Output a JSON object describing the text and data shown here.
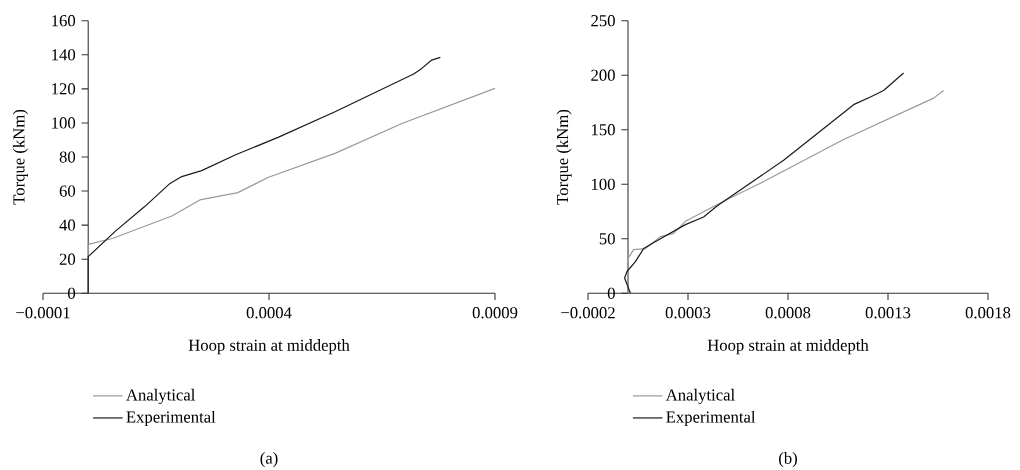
{
  "chart_data": [
    {
      "type": "line",
      "xlabel": "Hoop strain at middepth",
      "ylabel": "Torque (kNm)",
      "annotations": [
        "(a)"
      ],
      "legend": "bottom",
      "line_style": "solid",
      "marker": "none",
      "xlim": [
        -0.0001,
        0.0009
      ],
      "ylim": [
        0,
        160
      ],
      "xticks": [
        {
          "value": -0.0001,
          "label": "−0.0001"
        },
        0.0004,
        0.0009
      ],
      "yticks": [
        0,
        20,
        40,
        60,
        80,
        100,
        120,
        140,
        160
      ],
      "series": [
        {
          "name": "Analytical",
          "color": "#999999",
          "x": [
            0,
            0,
            5.5e-05,
            0.000185,
            0.000247,
            0.000331,
            0.000399,
            0.000546,
            0.000694,
            0.0009
          ],
          "values": [
            0,
            28.7,
            32.3,
            45.4,
            54.8,
            59.1,
            68.1,
            82.1,
            99.7,
            120.3
          ]
        },
        {
          "name": "Experimental",
          "color": "#1a1a1a",
          "x": [
            0,
            0,
            5.9e-05,
            0.000125,
            0.000181,
            0.000207,
            0.000251,
            0.000325,
            0.00042,
            0.000546,
            0.00072,
            0.000738,
            0.00076,
            0.000779
          ],
          "values": [
            0,
            21.5,
            36.2,
            50.9,
            64.5,
            68.5,
            72.0,
            81.2,
            91.5,
            106.6,
            128.7,
            132.0,
            136.9,
            138.5
          ]
        }
      ]
    },
    {
      "type": "line",
      "xlabel": "Hoop strain at middepth",
      "ylabel": "Torque (kNm)",
      "annotations": [
        "(b)"
      ],
      "legend": "bottom",
      "line_style": "solid",
      "marker": "none",
      "xlim": [
        -0.0002,
        0.0018
      ],
      "ylim": [
        0,
        250
      ],
      "xticks": [
        {
          "value": -0.0002,
          "label": "−0.0002"
        },
        0.0003,
        0.0008,
        0.0013,
        0.0018
      ],
      "yticks": [
        0,
        50,
        100,
        150,
        200,
        250
      ],
      "series": [
        {
          "name": "Analytical",
          "color": "#999999",
          "x": [
            0,
            0,
            2.8e-05,
            8.7e-05,
            0.000162,
            0.000228,
            0.000287,
            0.000495,
            0.000662,
            0.000745,
            0.001078,
            0.001528,
            0.001578
          ],
          "values": [
            0,
            32,
            40,
            41,
            52,
            55,
            66,
            86,
            101,
            109,
            141,
            179,
            186
          ]
        },
        {
          "name": "Experimental",
          "color": "#1a1a1a",
          "x": [
            1.2e-05,
            -1.7e-05,
            -5e-06,
            3.7e-05,
            7.8e-05,
            0.000162,
            0.000287,
            0.000378,
            0.000445,
            0.000778,
            0.001128,
            0.001212,
            0.001278,
            0.001378
          ],
          "values": [
            0,
            14,
            20,
            29,
            41,
            50,
            63,
            70,
            80,
            122,
            173,
            180,
            186,
            202
          ]
        }
      ]
    }
  ]
}
